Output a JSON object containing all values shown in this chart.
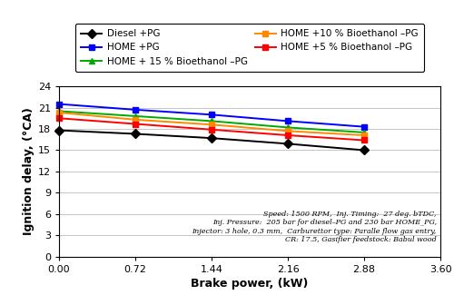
{
  "x": [
    0,
    0.72,
    1.44,
    2.16,
    2.88
  ],
  "series": [
    {
      "label": "Diesel +PG",
      "color": "#000000",
      "marker": "D",
      "y": [
        17.8,
        17.3,
        16.7,
        15.9,
        15.0
      ]
    },
    {
      "label": "HOME +PG",
      "color": "#0000FF",
      "marker": "s",
      "y": [
        21.5,
        20.7,
        20.0,
        19.1,
        18.3
      ]
    },
    {
      "label": "HOME + 15 % Bioethanol –PG",
      "color": "#00AA00",
      "marker": "^",
      "y": [
        20.5,
        19.8,
        19.1,
        18.2,
        17.5
      ]
    },
    {
      "label": "HOME +10 % Bioethanol –PG",
      "color": "#FF8800",
      "marker": "s",
      "y": [
        20.3,
        19.3,
        18.6,
        17.7,
        17.1
      ]
    },
    {
      "label": "HOME +5 % Bioethanol –PG",
      "color": "#FF0000",
      "marker": "s",
      "y": [
        19.5,
        18.7,
        17.9,
        17.1,
        16.4
      ]
    }
  ],
  "xlabel": "Brake power, (kW)",
  "ylabel": "Ignition delay, (°CA)",
  "xlim": [
    0,
    3.6
  ],
  "ylim": [
    0,
    24
  ],
  "yticks": [
    0,
    3,
    6,
    9,
    12,
    15,
    18,
    21,
    24
  ],
  "xticks": [
    0,
    0.72,
    1.44,
    2.16,
    2.88,
    3.6
  ],
  "annotation_line1": "Speed: 1500 RPM,  Inj. Timing:  27 deg. bTDC,",
  "annotation_line2": "Inj. Pressure:  205 bar for diesel–PG and 230 bar HOME_PG,",
  "annotation_line3": "Injector: 3 hole, 0.3 mm,  Carburettor type: Paralle flow gas entry,",
  "annotation_line4": "CR: 17.5, Gasifier feedstock: Babul wood",
  "background_color": "#FFFFFF",
  "grid_color": "#BBBBBB",
  "legend_order": [
    0,
    1,
    2,
    3,
    4
  ],
  "legend_ncol": 2
}
